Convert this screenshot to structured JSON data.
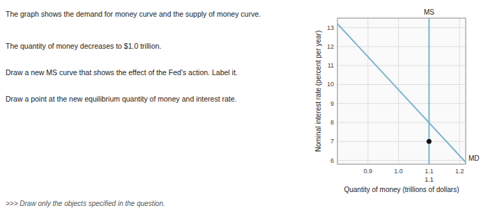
{
  "chart_data": {
    "type": "line",
    "xlabel": "Quantity of money (trillions of dollars)",
    "ylabel": "Nominal interest rate (percent per year)",
    "xlim": [
      0.8,
      1.22
    ],
    "ylim": [
      5.8,
      13.5
    ],
    "xticks": [
      0.9,
      {
        "value": 1.0,
        "label": "1.0"
      },
      1.1,
      1.2
    ],
    "yticks": [
      6,
      7,
      8,
      9,
      10,
      11,
      12,
      13
    ],
    "grid": true,
    "series": [
      {
        "name": "MD",
        "color": "#7ab4cc",
        "x": [
          0.8,
          1.22
        ],
        "values": [
          13.2,
          5.9
        ]
      }
    ],
    "vlines": [
      {
        "name": "MS",
        "color": "#7ab4cc",
        "x": 1.1
      }
    ],
    "points": [
      {
        "x": 1.1,
        "y": 7.0,
        "color": "#111111"
      }
    ],
    "annotations": [
      {
        "x": 1.1,
        "text": "1.1"
      }
    ],
    "instructions": [
      "The graph shows the demand for money curve and the supply of money curve.",
      "The quantity of money decreases to $1.0 trillion.",
      "Draw a new MS curve that shows the effect of the  Fed's action. Label it.",
      "Draw a point at the new equilibrium quantity of money and interest rate."
    ],
    "note": ">>> Draw only the objects specified in the question."
  }
}
